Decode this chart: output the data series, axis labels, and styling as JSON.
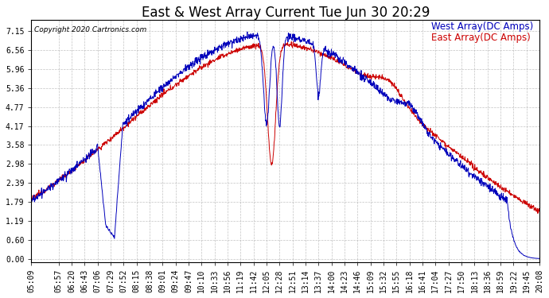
{
  "title": "East & West Array Current Tue Jun 30 20:29",
  "copyright": "Copyright 2020 Cartronics.com",
  "legend_east": "East Array(DC Amps)",
  "legend_west": "West Array(DC Amps)",
  "east_color": "#0000bb",
  "west_color": "#cc0000",
  "background_color": "#ffffff",
  "grid_color": "#aaaaaa",
  "yticks": [
    0.0,
    0.6,
    1.19,
    1.79,
    2.39,
    2.98,
    3.58,
    4.17,
    4.77,
    5.36,
    5.96,
    6.56,
    7.15
  ],
  "xtick_labels": [
    "05:09",
    "05:57",
    "06:20",
    "06:43",
    "07:06",
    "07:29",
    "07:52",
    "08:15",
    "08:38",
    "09:01",
    "09:24",
    "09:47",
    "10:10",
    "10:33",
    "10:56",
    "11:19",
    "11:42",
    "12:05",
    "12:28",
    "12:51",
    "13:14",
    "13:37",
    "14:00",
    "14:23",
    "14:46",
    "15:09",
    "15:32",
    "15:55",
    "16:18",
    "16:41",
    "17:04",
    "17:27",
    "17:50",
    "18:13",
    "18:36",
    "18:59",
    "19:22",
    "19:45",
    "20:08"
  ],
  "ylim": [
    -0.1,
    7.5
  ],
  "title_fontsize": 12,
  "tick_fontsize": 7,
  "legend_fontsize": 8.5
}
